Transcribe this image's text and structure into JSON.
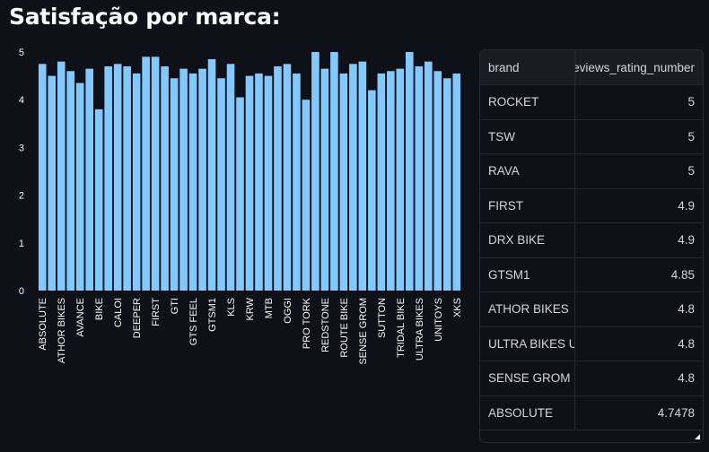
{
  "page": {
    "title": "Satisfação por marca:"
  },
  "table": {
    "columns": [
      "brand",
      "reviews_rating_number"
    ],
    "rows": [
      {
        "brand": "ROCKET",
        "rating": "5"
      },
      {
        "brand": "TSW",
        "rating": "5"
      },
      {
        "brand": "RAVA",
        "rating": "5"
      },
      {
        "brand": "FIRST",
        "rating": "4.9"
      },
      {
        "brand": "DRX BIKE",
        "rating": "4.9"
      },
      {
        "brand": "GTSM1",
        "rating": "4.85"
      },
      {
        "brand": "ATHOR BIKES",
        "rating": "4.8"
      },
      {
        "brand": "ULTRA BIKES U",
        "rating": "4.8"
      },
      {
        "brand": "SENSE GROM",
        "rating": "4.8"
      },
      {
        "brand": "ABSOLUTE",
        "rating": "4.7478"
      }
    ]
  },
  "colors": {
    "bar": "#83c9ff",
    "background": "#0e1117",
    "text": "#fafafa"
  },
  "chart_data": {
    "type": "bar",
    "title": "",
    "xlabel": "",
    "ylabel": "",
    "ylim": [
      0,
      5
    ],
    "yticks": [
      0,
      1,
      2,
      3,
      4,
      5
    ],
    "categories": [
      "ABSOLUTE",
      "",
      "ATHOR BIKES",
      "",
      "AVANCE",
      "",
      "BIKE",
      "",
      "CALOI",
      "",
      "DEEPER",
      "",
      "FIRST",
      "",
      "GTI",
      "",
      "GTS FEEL",
      "",
      "GTSM1",
      "",
      "KLS",
      "",
      "KRW",
      "",
      "MTB",
      "",
      "OGGI",
      "",
      "PRO TORK",
      "",
      "REDSTONE",
      "",
      "ROUTE BIKE",
      "",
      "SENSE GROM",
      "",
      "SUTTON",
      "",
      "TRIDAL BIKE",
      "",
      "ULTRA BIKES",
      "",
      "UNITOYS",
      "",
      "XKS"
    ],
    "values": [
      4.75,
      4.5,
      4.8,
      4.6,
      4.35,
      4.65,
      3.8,
      4.7,
      4.75,
      4.7,
      4.55,
      4.9,
      4.9,
      4.7,
      4.45,
      4.65,
      4.55,
      4.65,
      4.85,
      4.45,
      4.75,
      4.05,
      4.5,
      4.55,
      4.5,
      4.7,
      4.75,
      4.55,
      4.0,
      5.0,
      4.65,
      5.0,
      4.55,
      4.75,
      4.8,
      4.2,
      4.55,
      4.6,
      4.65,
      5.0,
      4.7,
      4.8,
      4.6,
      4.45,
      4.55
    ]
  }
}
